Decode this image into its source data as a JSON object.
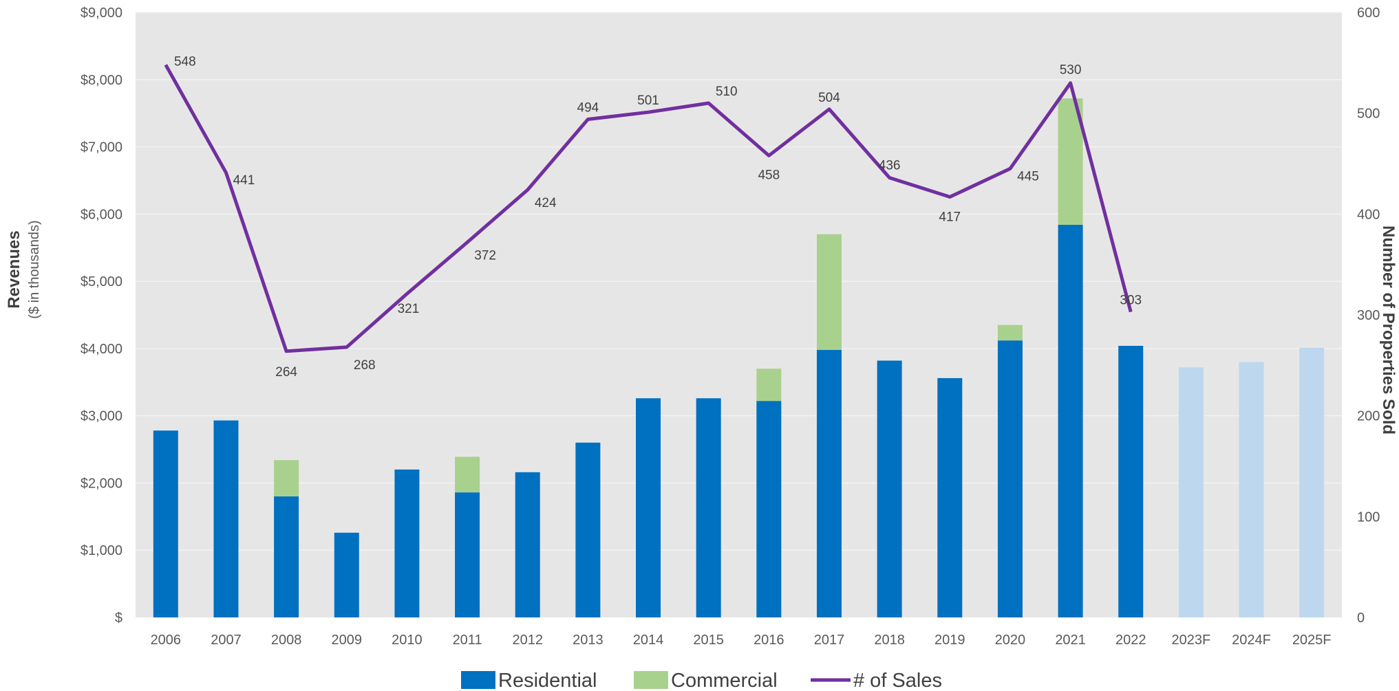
{
  "chart_data": {
    "type": "bar",
    "categories": [
      "2006",
      "2007",
      "2008",
      "2009",
      "2010",
      "2011",
      "2012",
      "2013",
      "2014",
      "2015",
      "2016",
      "2017",
      "2018",
      "2019",
      "2020",
      "2021",
      "2022",
      "2023F",
      "2024F",
      "2025F"
    ],
    "series": [
      {
        "name": "Residential",
        "type": "bar",
        "stack": "revenue",
        "axis": "left",
        "color": "#0070C0",
        "values": [
          2780,
          2930,
          1800,
          1260,
          2200,
          1860,
          2160,
          2600,
          3260,
          3260,
          3220,
          3980,
          3820,
          3560,
          4120,
          5840,
          4040,
          null,
          null,
          null
        ]
      },
      {
        "name": "Commercial",
        "type": "bar",
        "stack": "revenue",
        "axis": "left",
        "color": "#A9D18E",
        "values": [
          0,
          0,
          540,
          0,
          0,
          530,
          0,
          0,
          0,
          0,
          480,
          1720,
          0,
          0,
          230,
          1880,
          0,
          null,
          null,
          null
        ]
      },
      {
        "name": "",
        "type": "bar",
        "stack": "revenue",
        "axis": "left",
        "color": "#BDD7EE",
        "values": [
          null,
          null,
          null,
          null,
          null,
          null,
          null,
          null,
          null,
          null,
          null,
          null,
          null,
          null,
          null,
          null,
          null,
          3720,
          3800,
          4010
        ]
      },
      {
        "name": "# of Sales",
        "type": "line",
        "axis": "right",
        "color": "#7030A0",
        "values": [
          548,
          441,
          264,
          268,
          321,
          372,
          424,
          494,
          501,
          510,
          458,
          504,
          436,
          417,
          445,
          530,
          303,
          null,
          null,
          null
        ]
      }
    ],
    "data_labels": [
      "548",
      "441",
      "264",
      "268",
      "321",
      "372",
      "424",
      "494",
      "501",
      "510",
      "458",
      "504",
      "436",
      "417",
      "445",
      "530",
      "303"
    ],
    "ylabel": "Revenues",
    "ylabel_sub": "($ in thousands)",
    "y2label": "Number of Properties Sold",
    "ylim": [
      0,
      9000
    ],
    "y2lim": [
      0,
      600
    ],
    "yticks": [
      "$",
      "$1,000",
      "$2,000",
      "$3,000",
      "$4,000",
      "$5,000",
      "$6,000",
      "$7,000",
      "$8,000",
      "$9,000"
    ],
    "y2ticks": [
      "0",
      "100",
      "200",
      "300",
      "400",
      "500",
      "600"
    ],
    "grid": true,
    "legend": {
      "placement": "bottom",
      "items": [
        "Residential",
        "Commercial",
        "# of Sales"
      ]
    },
    "colors": {
      "plot_background": "#E7E6E6",
      "grid": "#F2F2F2",
      "text": "#595959"
    }
  }
}
